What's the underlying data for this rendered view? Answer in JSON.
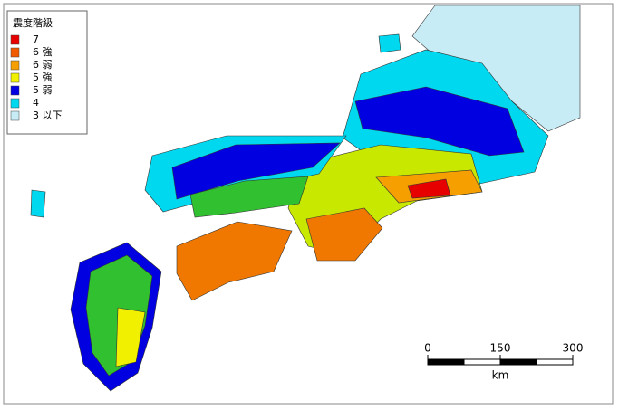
{
  "legend": {
    "title": "震度階級",
    "items": [
      {
        "label": "7",
        "color": "#e60000"
      },
      {
        "label": "6 強",
        "color": "#f05a00"
      },
      {
        "label": "6 弱",
        "color": "#f5a000"
      },
      {
        "label": "5 強",
        "color": "#f0f000"
      },
      {
        "label": "5 弱",
        "color": "#0000e0"
      },
      {
        "label": "4",
        "color": "#00d8f0"
      },
      {
        "label": "3 以下",
        "color": "#c8ecf5"
      }
    ]
  },
  "scale": {
    "ticks": [
      "0",
      "150",
      "300"
    ],
    "unit": "km"
  }
}
